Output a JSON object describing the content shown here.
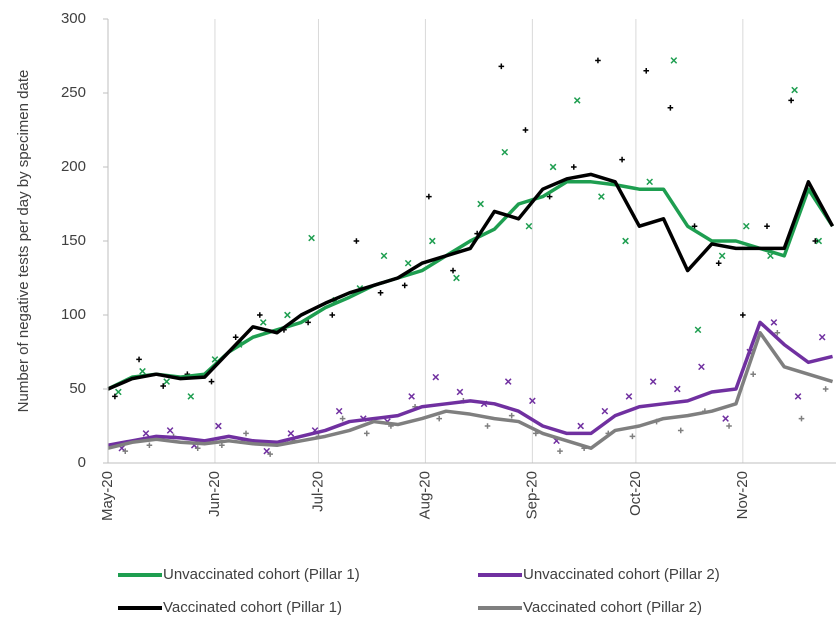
{
  "chart_data": {
    "type": "line",
    "y_label": "Number of negative tests per day by specimen date",
    "xlim": [
      0,
      211
    ],
    "ylim": [
      0,
      300
    ],
    "xticks": [
      {
        "value": 0,
        "label": "May-20"
      },
      {
        "value": 31,
        "label": "Jun-20"
      },
      {
        "value": 61,
        "label": "Jul-20"
      },
      {
        "value": 92,
        "label": "Aug-20"
      },
      {
        "value": 123,
        "label": "Sep-20"
      },
      {
        "value": 153,
        "label": "Oct-20"
      },
      {
        "value": 184,
        "label": "Nov-20"
      }
    ],
    "yticks": [
      0,
      50,
      100,
      150,
      200,
      250,
      300
    ],
    "grid": "x",
    "x": [
      0,
      7,
      14,
      21,
      28,
      35,
      42,
      49,
      56,
      63,
      70,
      77,
      84,
      91,
      98,
      105,
      112,
      119,
      126,
      133,
      140,
      147,
      154,
      161,
      168,
      175,
      182,
      189,
      196,
      203,
      210
    ],
    "series": [
      {
        "name": "Unvaccinated cohort (Pillar 1)",
        "color": "#1e9e50",
        "values": [
          50,
          58,
          60,
          58,
          60,
          75,
          85,
          90,
          95,
          105,
          112,
          120,
          125,
          130,
          140,
          150,
          158,
          175,
          180,
          190,
          190,
          188,
          185,
          185,
          160,
          150,
          150,
          145,
          140,
          185,
          160
        ]
      },
      {
        "name": "Unvaccinated cohort (Pillar 2)",
        "color": "#7030a0",
        "values": [
          12,
          15,
          18,
          17,
          15,
          18,
          15,
          14,
          18,
          22,
          28,
          30,
          32,
          38,
          40,
          42,
          40,
          35,
          25,
          20,
          20,
          32,
          38,
          40,
          42,
          48,
          50,
          95,
          80,
          68,
          72
        ]
      },
      {
        "name": "Vaccinated cohort (Pillar 1)",
        "color": "#000000",
        "values": [
          50,
          57,
          60,
          57,
          58,
          75,
          92,
          88,
          100,
          108,
          115,
          120,
          125,
          135,
          140,
          145,
          170,
          165,
          185,
          192,
          195,
          190,
          160,
          165,
          130,
          148,
          145,
          145,
          145,
          190,
          160
        ]
      },
      {
        "name": "Vaccinated cohort (Pillar 2)",
        "color": "#7f7f7f",
        "values": [
          10,
          14,
          16,
          14,
          13,
          15,
          13,
          12,
          15,
          18,
          22,
          28,
          26,
          30,
          35,
          33,
          30,
          28,
          20,
          15,
          10,
          22,
          25,
          30,
          32,
          35,
          40,
          88,
          65,
          60,
          55
        ]
      }
    ],
    "scatter": [
      {
        "color": "#1e9e50",
        "marker": "x",
        "x": [
          3,
          10,
          17,
          24,
          31,
          38,
          45,
          52,
          59,
          66,
          73,
          80,
          87,
          94,
          101,
          108,
          115,
          122,
          129,
          136,
          143,
          150,
          157,
          164,
          171,
          178,
          185,
          192,
          199,
          206
        ],
        "values": [
          48,
          62,
          55,
          45,
          70,
          80,
          95,
          100,
          152,
          110,
          118,
          140,
          135,
          150,
          125,
          175,
          210,
          160,
          200,
          245,
          180,
          150,
          190,
          272,
          90,
          140,
          160,
          140,
          252,
          150
        ]
      },
      {
        "color": "#000000",
        "marker": "+",
        "x": [
          2,
          9,
          16,
          23,
          30,
          37,
          44,
          51,
          58,
          65,
          72,
          79,
          86,
          93,
          100,
          107,
          114,
          121,
          128,
          135,
          142,
          149,
          156,
          163,
          170,
          177,
          184,
          191,
          198,
          205
        ],
        "values": [
          45,
          70,
          52,
          60,
          55,
          85,
          100,
          90,
          95,
          100,
          150,
          115,
          120,
          180,
          130,
          155,
          268,
          225,
          180,
          200,
          272,
          205,
          265,
          240,
          160,
          135,
          100,
          160,
          245,
          150
        ]
      },
      {
        "color": "#7030a0",
        "marker": "x",
        "x": [
          4,
          11,
          18,
          25,
          32,
          39,
          46,
          53,
          60,
          67,
          74,
          81,
          88,
          95,
          102,
          109,
          116,
          123,
          130,
          137,
          144,
          151,
          158,
          165,
          172,
          179,
          186,
          193,
          200,
          207
        ],
        "values": [
          10,
          20,
          22,
          12,
          25,
          15,
          8,
          20,
          22,
          35,
          30,
          28,
          45,
          58,
          48,
          40,
          55,
          42,
          15,
          25,
          35,
          45,
          55,
          50,
          65,
          30,
          75,
          95,
          45,
          85
        ]
      },
      {
        "color": "#7f7f7f",
        "marker": "+",
        "x": [
          5,
          12,
          19,
          26,
          33,
          40,
          47,
          54,
          61,
          68,
          75,
          82,
          89,
          96,
          103,
          110,
          117,
          124,
          131,
          138,
          145,
          152,
          159,
          166,
          173,
          180,
          187,
          194,
          201,
          208
        ],
        "values": [
          8,
          12,
          18,
          10,
          12,
          20,
          6,
          15,
          18,
          30,
          20,
          25,
          38,
          30,
          42,
          25,
          32,
          20,
          8,
          10,
          20,
          18,
          28,
          22,
          35,
          25,
          60,
          88,
          30,
          50
        ]
      }
    ]
  }
}
